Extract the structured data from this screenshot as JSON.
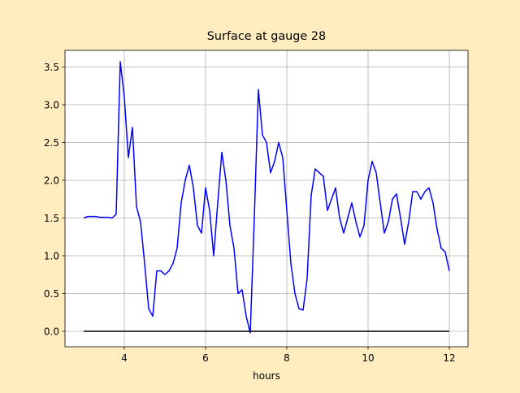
{
  "chart_data": {
    "type": "line",
    "title": "Surface at gauge 28",
    "xlabel": "hours",
    "xlim": [
      2.54,
      12.46
    ],
    "ylim": [
      -0.204,
      3.72
    ],
    "xticks": [
      4,
      6,
      8,
      10,
      12
    ],
    "yticks": [
      {
        "value": 0,
        "label": "0.0"
      },
      0.5,
      {
        "value": 1,
        "label": "1.0"
      },
      1.5,
      {
        "value": 2,
        "label": "2.0"
      },
      2.5,
      {
        "value": 3,
        "label": "3.0"
      },
      3.5
    ],
    "grid": true,
    "series": [
      {
        "color": "#0000ff",
        "x": [
          3.0,
          3.1,
          3.2,
          3.3,
          3.4,
          3.5,
          3.6,
          3.7,
          3.8,
          3.9,
          4.0,
          4.1,
          4.2,
          4.3,
          4.4,
          4.5,
          4.6,
          4.7,
          4.8,
          4.9,
          5.0,
          5.1,
          5.2,
          5.3,
          5.4,
          5.5,
          5.6,
          5.7,
          5.8,
          5.9,
          6.0,
          6.1,
          6.2,
          6.3,
          6.4,
          6.5,
          6.6,
          6.7,
          6.8,
          6.9,
          7.0,
          7.1,
          7.2,
          7.3,
          7.4,
          7.5,
          7.6,
          7.7,
          7.8,
          7.9,
          8.0,
          8.1,
          8.2,
          8.3,
          8.4,
          8.5,
          8.6,
          8.7,
          8.8,
          8.9,
          9.0,
          9.1,
          9.2,
          9.3,
          9.4,
          9.5,
          9.6,
          9.7,
          9.8,
          9.9,
          10.0,
          10.1,
          10.2,
          10.3,
          10.4,
          10.5,
          10.6,
          10.7,
          10.8,
          10.9,
          11.0,
          11.1,
          11.2,
          11.3,
          11.4,
          11.5,
          11.6,
          11.7,
          11.8,
          11.9,
          12.0
        ],
        "values": [
          1.5,
          1.52,
          1.52,
          1.52,
          1.51,
          1.51,
          1.51,
          1.5,
          1.55,
          3.57,
          3.1,
          2.3,
          2.7,
          1.65,
          1.45,
          0.9,
          0.3,
          0.2,
          0.8,
          0.8,
          0.75,
          0.8,
          0.9,
          1.1,
          1.7,
          2.0,
          2.2,
          1.9,
          1.4,
          1.3,
          1.9,
          1.6,
          1.0,
          1.7,
          2.37,
          2.0,
          1.4,
          1.1,
          0.5,
          0.55,
          0.2,
          -0.02,
          1.5,
          3.2,
          2.6,
          2.5,
          2.1,
          2.25,
          2.5,
          2.3,
          1.6,
          0.9,
          0.5,
          0.3,
          0.28,
          0.7,
          1.8,
          2.15,
          2.1,
          2.05,
          1.6,
          1.75,
          1.9,
          1.5,
          1.3,
          1.5,
          1.7,
          1.45,
          1.25,
          1.4,
          2.0,
          2.25,
          2.1,
          1.7,
          1.3,
          1.45,
          1.75,
          1.82,
          1.5,
          1.15,
          1.45,
          1.85,
          1.85,
          1.75,
          1.85,
          1.9,
          1.7,
          1.35,
          1.1,
          1.05,
          0.8
        ]
      },
      {
        "color": "#000000",
        "x": [
          3,
          12
        ],
        "values": [
          0,
          0
        ]
      }
    ]
  }
}
